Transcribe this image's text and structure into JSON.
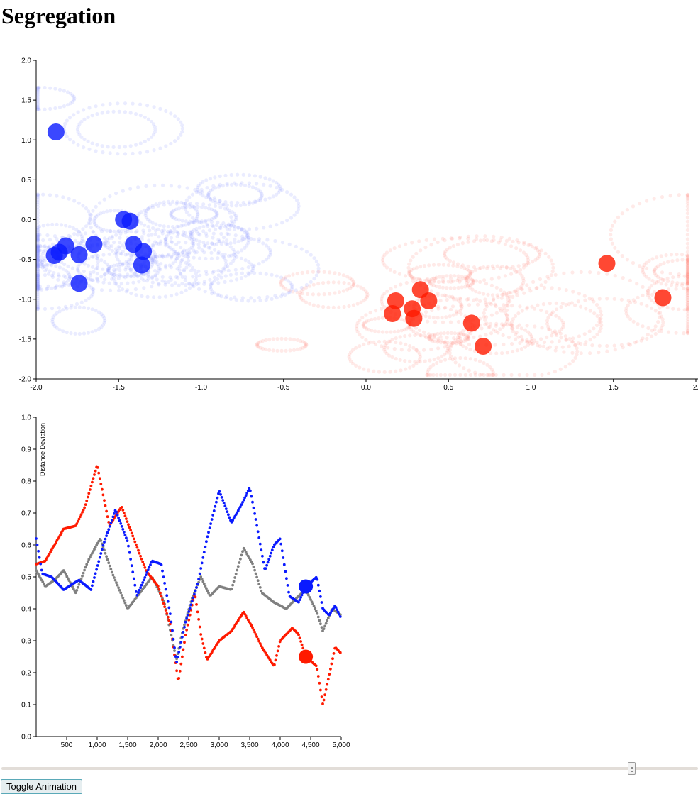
{
  "page": {
    "title": "Segregation"
  },
  "controls": {
    "toggle_label": "Toggle Animation",
    "slider_value": 0.905
  },
  "colors": {
    "blue": "#0a1aff",
    "red": "#ff1a00",
    "gray": "#808080",
    "trail_blue": "#8c98ff",
    "trail_red": "#ff8c80"
  },
  "chart_data": [
    {
      "type": "scatter",
      "xlim": [
        -2.0,
        2.0
      ],
      "ylim": [
        -2.0,
        2.0
      ],
      "x_ticks": [
        "-2.0",
        "-1.5",
        "-1.0",
        "-0.5",
        "0.0",
        "0.5",
        "1.0",
        "1.5",
        "2."
      ],
      "y_ticks": [
        "-2.0",
        "-1.5",
        "-1.0",
        "-0.5",
        "0.0",
        "0.5",
        "1.0",
        "1.5",
        "2.0"
      ],
      "series": [
        {
          "color": "blue",
          "points": [
            [
              -1.88,
              1.1
            ],
            [
              -1.47,
              0.0
            ],
            [
              -1.43,
              -0.02
            ],
            [
              -1.41,
              -0.31
            ],
            [
              -1.35,
              -0.4
            ],
            [
              -1.36,
              -0.57
            ],
            [
              -1.65,
              -0.31
            ],
            [
              -1.82,
              -0.33
            ],
            [
              -1.86,
              -0.41
            ],
            [
              -1.89,
              -0.45
            ],
            [
              -1.74,
              -0.44
            ],
            [
              -1.74,
              -0.8
            ]
          ]
        },
        {
          "color": "red",
          "points": [
            [
              1.46,
              -0.55
            ],
            [
              1.8,
              -0.98
            ],
            [
              0.33,
              -0.88
            ],
            [
              0.38,
              -1.02
            ],
            [
              0.18,
              -1.02
            ],
            [
              0.16,
              -1.18
            ],
            [
              0.28,
              -1.12
            ],
            [
              0.29,
              -1.24
            ],
            [
              0.64,
              -1.3
            ],
            [
              0.71,
              -1.59
            ]
          ]
        }
      ]
    },
    {
      "type": "line",
      "ylabel": "Distance Deviation",
      "xlim": [
        0,
        5000
      ],
      "ylim": [
        0.0,
        1.0
      ],
      "x_ticks": [
        "500",
        "1,000",
        "1,500",
        "2,000",
        "2,500",
        "3,000",
        "3,500",
        "4,000",
        "4,500",
        "5,000"
      ],
      "y_ticks": [
        "0.0",
        "0.1",
        "0.2",
        "0.3",
        "0.4",
        "0.5",
        "0.6",
        "0.7",
        "0.8",
        "0.9",
        "1.0"
      ],
      "current_step": 4420,
      "series": [
        {
          "color": "red",
          "x": [
            0,
            150,
            450,
            650,
            800,
            1000,
            1200,
            1400,
            1600,
            1800,
            2000,
            2200,
            2330,
            2450,
            2600,
            2700,
            2800,
            3000,
            3200,
            3400,
            3550,
            3700,
            3900,
            4000,
            4200,
            4300,
            4420,
            4600,
            4700,
            4800,
            4900,
            5000
          ],
          "y": [
            0.54,
            0.55,
            0.65,
            0.66,
            0.72,
            0.85,
            0.66,
            0.72,
            0.62,
            0.52,
            0.47,
            0.35,
            0.17,
            0.32,
            0.45,
            0.32,
            0.24,
            0.3,
            0.33,
            0.39,
            0.34,
            0.28,
            0.22,
            0.3,
            0.34,
            0.32,
            0.25,
            0.22,
            0.1,
            0.19,
            0.28,
            0.26
          ]
        },
        {
          "color": "blue",
          "x": [
            0,
            100,
            250,
            450,
            700,
            900,
            1100,
            1300,
            1500,
            1650,
            1900,
            2050,
            2200,
            2300,
            2450,
            2650,
            2800,
            3000,
            3200,
            3350,
            3500,
            3600,
            3750,
            3900,
            4000,
            4150,
            4300,
            4420,
            4600,
            4700,
            4800,
            4900,
            5000
          ],
          "y": [
            0.62,
            0.51,
            0.5,
            0.46,
            0.49,
            0.46,
            0.6,
            0.71,
            0.61,
            0.44,
            0.55,
            0.54,
            0.38,
            0.23,
            0.36,
            0.48,
            0.62,
            0.77,
            0.67,
            0.72,
            0.78,
            0.68,
            0.52,
            0.6,
            0.62,
            0.44,
            0.42,
            0.47,
            0.5,
            0.4,
            0.38,
            0.41,
            0.37
          ]
        },
        {
          "color": "gray",
          "x": [
            0,
            150,
            300,
            450,
            650,
            850,
            1050,
            1250,
            1500,
            1700,
            1900,
            2100,
            2300,
            2400,
            2550,
            2700,
            2850,
            3000,
            3200,
            3400,
            3550,
            3700,
            3900,
            4100,
            4300,
            4420,
            4600,
            4700,
            4850,
            5000
          ],
          "y": [
            0.52,
            0.47,
            0.49,
            0.52,
            0.45,
            0.55,
            0.62,
            0.51,
            0.4,
            0.45,
            0.5,
            0.42,
            0.24,
            0.33,
            0.43,
            0.5,
            0.44,
            0.47,
            0.46,
            0.59,
            0.54,
            0.45,
            0.42,
            0.4,
            0.44,
            0.46,
            0.39,
            0.33,
            0.4,
            0.38
          ]
        }
      ]
    }
  ]
}
